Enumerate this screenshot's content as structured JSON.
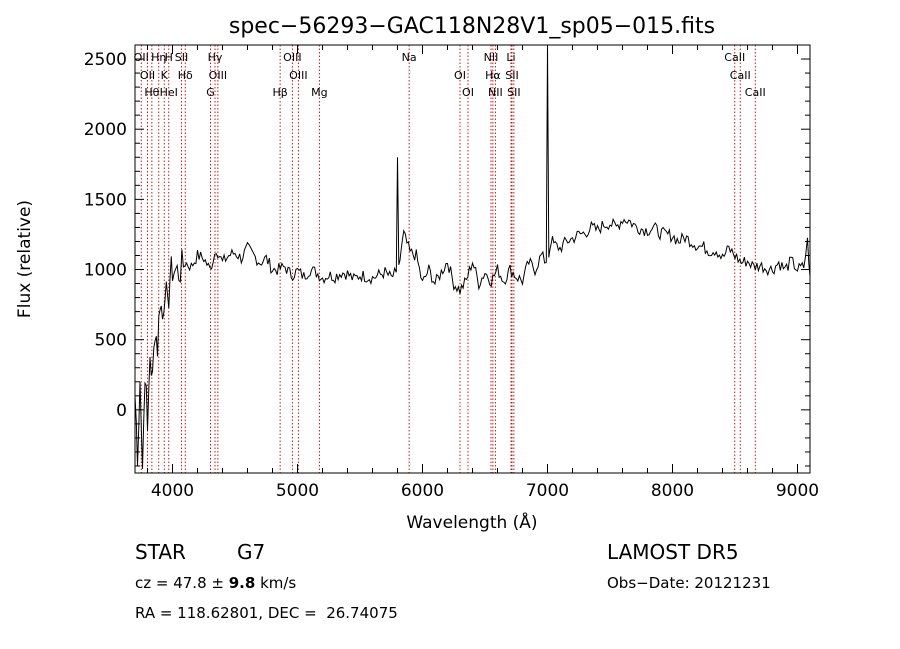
{
  "chart_data": {
    "type": "line",
    "title": "spec−56293−GAC118N28V1_sp05−015.fits",
    "xlabel": "Wavelength (Å)",
    "ylabel": "Flux (relative)",
    "xlim": [
      3700,
      9100
    ],
    "ylim": [
      -450,
      2600
    ],
    "x_ticks": [
      4000,
      5000,
      6000,
      7000,
      8000,
      9000
    ],
    "y_ticks": [
      0,
      500,
      1000,
      1500,
      2000,
      2500
    ],
    "series": [
      {
        "x": [
          3700,
          3720,
          3740,
          3760,
          3780,
          3800,
          3820,
          3840,
          3860,
          3880,
          3900,
          3920,
          3940,
          3960,
          3980,
          4000,
          4050,
          4100,
          4150,
          4200,
          4250,
          4300,
          4350,
          4400,
          4450,
          4500,
          4550,
          4600,
          4650,
          4700,
          4750,
          4800,
          4850,
          4900,
          4950,
          5000,
          5050,
          5100,
          5150,
          5200,
          5250,
          5300,
          5350,
          5400,
          5450,
          5500,
          5550,
          5600,
          5650,
          5700,
          5750,
          5790,
          5800,
          5810,
          5830,
          5850,
          5900,
          5950,
          6000,
          6050,
          6100,
          6150,
          6200,
          6250,
          6300,
          6350,
          6400,
          6450,
          6500,
          6550,
          6600,
          6650,
          6700,
          6750,
          6800,
          6850,
          6900,
          6950,
          6990,
          7000,
          7010,
          7030,
          7050,
          7100,
          7150,
          7200,
          7250,
          7300,
          7350,
          7400,
          7450,
          7500,
          7550,
          7600,
          7650,
          7700,
          7750,
          7800,
          7850,
          7900,
          7950,
          8000,
          8050,
          8100,
          8150,
          8200,
          8250,
          8300,
          8350,
          8400,
          8450,
          8500,
          8550,
          8600,
          8650,
          8700,
          8750,
          8800,
          8850,
          8900,
          8950,
          9000,
          9050,
          9080,
          9100
        ],
        "y": [
          100,
          -300,
          200,
          -420,
          300,
          -150,
          400,
          200,
          600,
          450,
          800,
          650,
          900,
          700,
          950,
          1000,
          980,
          1050,
          1020,
          1100,
          1080,
          1000,
          1150,
          1050,
          1100,
          1120,
          1080,
          1150,
          1100,
          1050,
          1080,
          1000,
          1000,
          1020,
          960,
          990,
          950,
          1000,
          980,
          940,
          960,
          950,
          980,
          970,
          930,
          960,
          950,
          940,
          960,
          980,
          940,
          980,
          1800,
          1000,
          1150,
          1250,
          1120,
          1100,
          900,
          1000,
          900,
          980,
          1060,
          900,
          850,
          920,
          1060,
          900,
          980,
          920,
          1000,
          920,
          1000,
          950,
          920,
          1050,
          1000,
          1100,
          1050,
          2650,
          1100,
          1220,
          1180,
          1150,
          1200,
          1220,
          1250,
          1260,
          1300,
          1280,
          1320,
          1330,
          1300,
          1360,
          1350,
          1310,
          1290,
          1280,
          1300,
          1260,
          1250,
          1240,
          1200,
          1230,
          1200,
          1170,
          1160,
          1130,
          1140,
          1080,
          1150,
          1100,
          1050,
          1060,
          1020,
          1030,
          1010,
          1000,
          1050,
          1000,
          1060,
          1000,
          1020,
          1200,
          950
        ]
      }
    ],
    "lines": [
      {
        "x": 3750,
        "labels": [
          "OII"
        ]
      },
      {
        "x": 3800,
        "labels": [
          "OII"
        ]
      },
      {
        "x": 3835,
        "labels": [
          "Hθ"
        ]
      },
      {
        "x": 3890,
        "labels": [
          "Hη"
        ]
      },
      {
        "x": 3934,
        "labels": [
          "K"
        ]
      },
      {
        "x": 3970,
        "labels": [
          "HeI",
          "H"
        ]
      },
      {
        "x": 4072,
        "labels": [
          "SII"
        ]
      },
      {
        "x": 4102,
        "labels": [
          "Hδ"
        ]
      },
      {
        "x": 4304,
        "labels": [
          "G"
        ]
      },
      {
        "x": 4340,
        "labels": [
          "Hγ"
        ]
      },
      {
        "x": 4363,
        "labels": [
          "OIII"
        ]
      },
      {
        "x": 4861,
        "labels": [
          "Hβ"
        ]
      },
      {
        "x": 4959,
        "labels": [
          "OIII"
        ]
      },
      {
        "x": 5007,
        "labels": [
          "OIII"
        ]
      },
      {
        "x": 5175,
        "labels": [
          "Mg"
        ]
      },
      {
        "x": 5893,
        "labels": [
          "Na"
        ]
      },
      {
        "x": 6300,
        "labels": [
          "OI"
        ]
      },
      {
        "x": 6364,
        "labels": [
          "OI"
        ]
      },
      {
        "x": 6548,
        "labels": [
          "NII"
        ]
      },
      {
        "x": 6563,
        "labels": [
          "Hα"
        ]
      },
      {
        "x": 6583,
        "labels": [
          "NII"
        ]
      },
      {
        "x": 6708,
        "labels": [
          "Li"
        ]
      },
      {
        "x": 6716,
        "labels": [
          "SII"
        ]
      },
      {
        "x": 6731,
        "labels": [
          "SII"
        ]
      },
      {
        "x": 8498,
        "labels": [
          "CaII"
        ]
      },
      {
        "x": 8542,
        "labels": [
          "CaII"
        ]
      },
      {
        "x": 8662,
        "labels": [
          "CaII"
        ]
      }
    ]
  },
  "info": {
    "object_class": "STAR",
    "subclass": "G7",
    "survey": "LAMOST DR5",
    "cz_prefix": "cz = 47.8 ± ",
    "cz_error": "9.8",
    "cz_unit": " km/s",
    "obs_date": "Obs−Date: 20121231",
    "radec": "RA = 118.62801, DEC =  26.74075"
  }
}
